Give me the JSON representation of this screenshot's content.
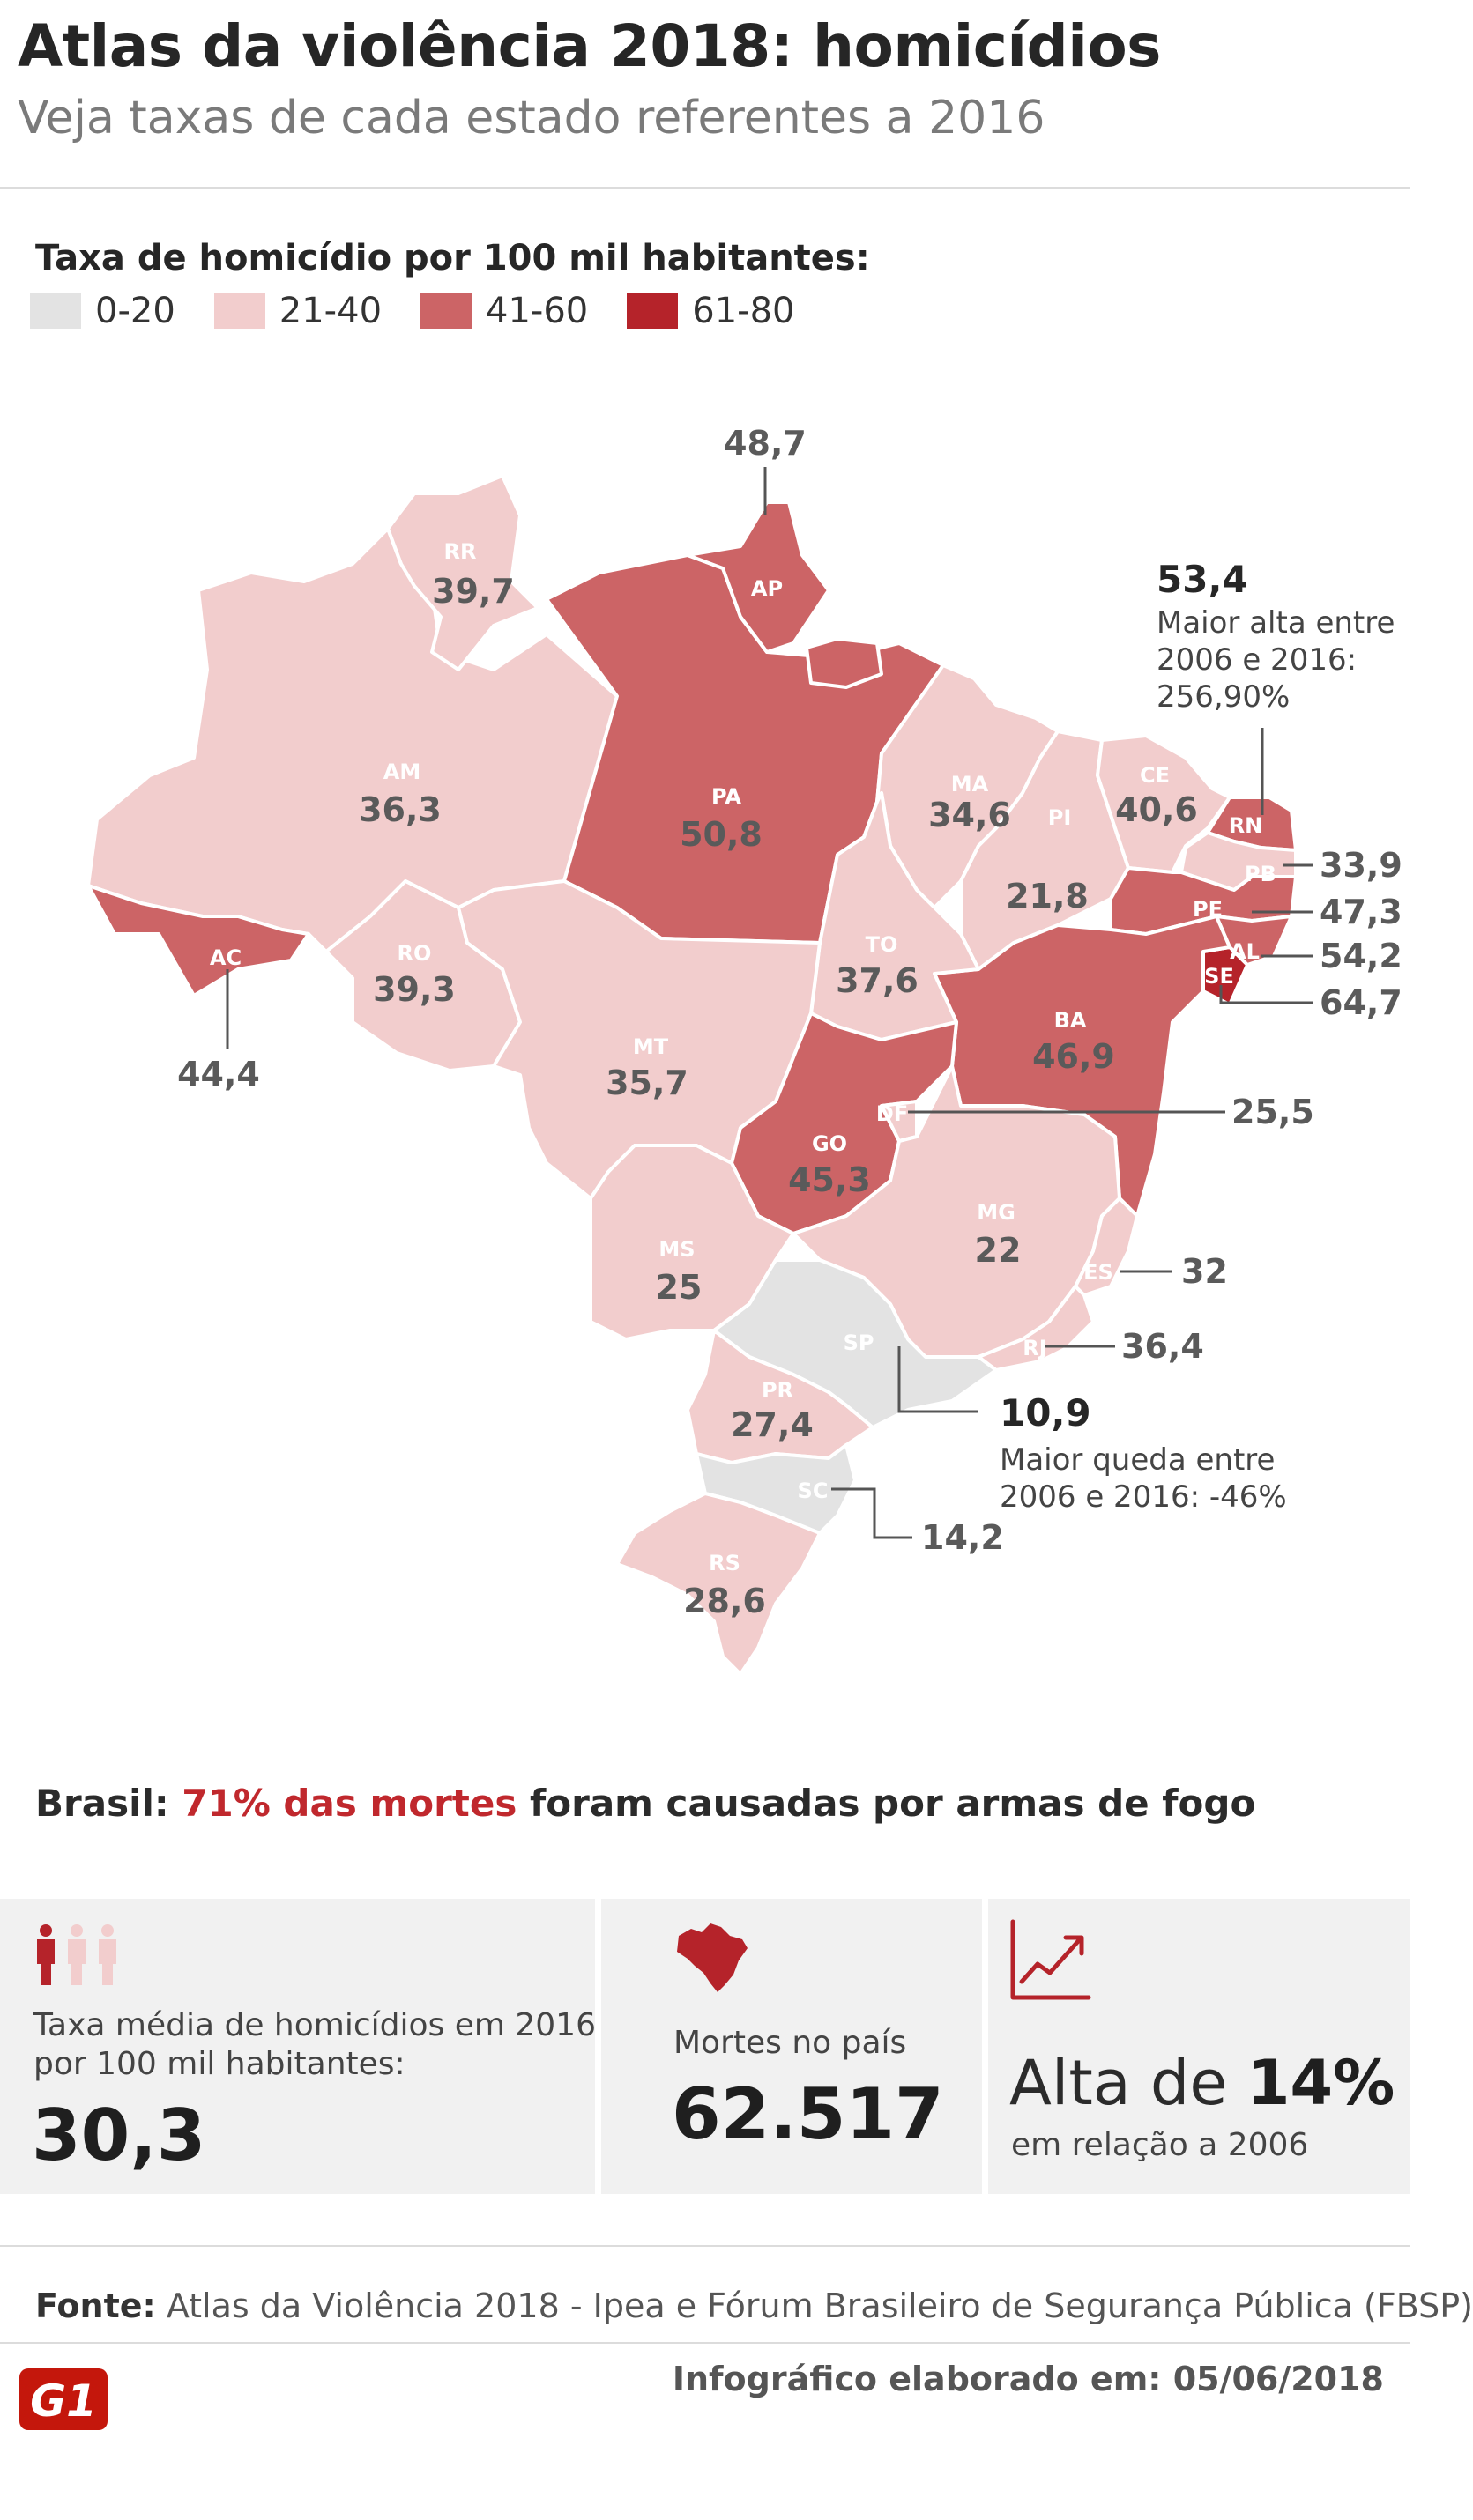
{
  "header": {
    "title": "Atlas da violência 2018: homicídios",
    "subtitle": "Veja taxas de cada estado referentes a 2016"
  },
  "legend": {
    "title": "Taxa de homicídio por 100 mil habitantes:",
    "items": [
      {
        "label": "0-20",
        "color": "#e3e3e3"
      },
      {
        "label": "21-40",
        "color": "#f2cdcd"
      },
      {
        "label": "41-60",
        "color": "#cc6466"
      },
      {
        "label": "61-80",
        "color": "#b5232a"
      }
    ]
  },
  "map": {
    "states": [
      {
        "abbr": "RR",
        "value": "39,7",
        "color": "#f2cdcd"
      },
      {
        "abbr": "AP",
        "value": "48,7",
        "color": "#cc6466"
      },
      {
        "abbr": "AM",
        "value": "36,3",
        "color": "#f2cdcd"
      },
      {
        "abbr": "PA",
        "value": "50,8",
        "color": "#cc6466"
      },
      {
        "abbr": "MA",
        "value": "34,6",
        "color": "#f2cdcd"
      },
      {
        "abbr": "CE",
        "value": "40,6",
        "color": "#f2cdcd"
      },
      {
        "abbr": "RN",
        "value": "53,4",
        "color": "#cc6466"
      },
      {
        "abbr": "PB",
        "value": "33,9",
        "color": "#f2cdcd"
      },
      {
        "abbr": "PE",
        "value": "47,3",
        "color": "#cc6466"
      },
      {
        "abbr": "AL",
        "value": "54,2",
        "color": "#cc6466"
      },
      {
        "abbr": "SE",
        "value": "64,7",
        "color": "#b5232a"
      },
      {
        "abbr": "PI",
        "value": "21,8",
        "color": "#f2cdcd"
      },
      {
        "abbr": "AC",
        "value": "44,4",
        "color": "#cc6466"
      },
      {
        "abbr": "RO",
        "value": "39,3",
        "color": "#f2cdcd"
      },
      {
        "abbr": "TO",
        "value": "37,6",
        "color": "#f2cdcd"
      },
      {
        "abbr": "BA",
        "value": "46,9",
        "color": "#cc6466"
      },
      {
        "abbr": "MT",
        "value": "35,7",
        "color": "#f2cdcd"
      },
      {
        "abbr": "DF",
        "value": "25,5",
        "color": "#f2cdcd"
      },
      {
        "abbr": "GO",
        "value": "45,3",
        "color": "#cc6466"
      },
      {
        "abbr": "MG",
        "value": "22",
        "color": "#f2cdcd"
      },
      {
        "abbr": "MS",
        "value": "25",
        "color": "#f2cdcd"
      },
      {
        "abbr": "ES",
        "value": "32",
        "color": "#f2cdcd"
      },
      {
        "abbr": "RJ",
        "value": "36,4",
        "color": "#f2cdcd"
      },
      {
        "abbr": "SP",
        "value": "10,9",
        "color": "#e3e3e3"
      },
      {
        "abbr": "PR",
        "value": "27,4",
        "color": "#f2cdcd"
      },
      {
        "abbr": "SC",
        "value": "14,2",
        "color": "#e3e3e3"
      },
      {
        "abbr": "RS",
        "value": "28,6",
        "color": "#f2cdcd"
      }
    ],
    "note_high": {
      "value": "53,4",
      "line1": "Maior alta entre",
      "line2": "2006 e 2016:",
      "line3": "256,90%"
    },
    "note_low": {
      "value": "10,9",
      "line1": "Maior queda entre",
      "line2": "2006 e 2016: -46%"
    }
  },
  "tagline": {
    "prefix": "Brasil:",
    "highlight": "71% das mortes",
    "suffix": "foram causadas por armas de fogo"
  },
  "stats": {
    "rate": {
      "line1": "Taxa média de homicídios em 2016",
      "line2": "por 100 mil habitantes:",
      "value": "30,3",
      "icon": "people-icon"
    },
    "deaths": {
      "label": "Mortes no país",
      "value": "62.517",
      "icon": "brazil-map-icon"
    },
    "growth": {
      "prefix": "Alta de",
      "value": "14%",
      "label": "em relação a 2006",
      "icon": "trend-up-icon"
    }
  },
  "footer": {
    "source_label": "Fonte:",
    "source_text": "Atlas da Violência 2018 - Ipea e Fórum Brasileiro de Segurança Pública (FBSP)",
    "logo": "G1",
    "made": "Infográfico elaborado em: 05/06/2018"
  },
  "colors": {
    "accent": "#c0282d",
    "label_dark": "#5a5a5a",
    "abbr": "#ffffff"
  }
}
